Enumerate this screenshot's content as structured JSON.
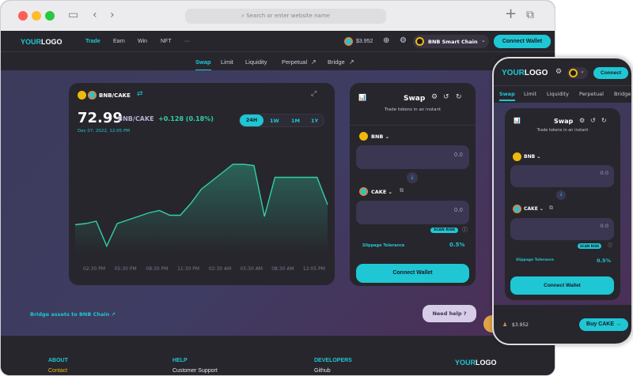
{
  "browser": {
    "search_placeholder": "Search or enter website name"
  },
  "logo": {
    "part1": "YOUR",
    "part2": "LOGO"
  },
  "nav": {
    "items": [
      "Trade",
      "Earn",
      "Win",
      "NFT",
      "···"
    ],
    "price": "$3.952",
    "network": "BNB Smart Chain",
    "connect": "Connect Wallet"
  },
  "subnav": {
    "items": [
      "Swap",
      "Limit",
      "Liquidity",
      "Perpetual",
      "Bridge"
    ]
  },
  "chart_card": {
    "pair": "BNB/CAKE",
    "price": "72.99",
    "pair_label": "BNB/CAKE",
    "change": "+0.128 (0.18%)",
    "date": "Dec 07, 2022, 12:05 PM",
    "ranges": [
      "24H",
      "1W",
      "1M",
      "1Y"
    ],
    "active_range": "24H"
  },
  "chart_data": {
    "type": "area",
    "x_ticks": [
      "02:30 PM",
      "05:30 PM",
      "08:30 PM",
      "11:30 PM",
      "02:30 AM",
      "05:30 AM",
      "08:30 AM",
      "12:05 PM"
    ],
    "values": [
      31,
      32,
      34,
      13,
      32,
      35,
      38,
      41,
      43,
      39,
      39,
      49,
      61,
      68,
      75,
      82,
      82,
      81,
      38,
      71,
      71,
      71,
      71,
      71,
      48
    ],
    "ylim": [
      0,
      100
    ],
    "grid": false,
    "color": "#31d0aa"
  },
  "swap": {
    "title": "Swap",
    "subtitle": "Trade tokens in an instant",
    "from_token": "BNB",
    "to_token": "CAKE",
    "from_value": "0.0",
    "to_value": "0.0",
    "scan_risk": "SCAN RISK",
    "slippage_label": "Slippage Tolerance",
    "slippage_value": "0.5%",
    "connect": "Connect Wallet"
  },
  "bridge_link": "Bridge assets to BNB Chain",
  "help": "Need help ?",
  "footer": {
    "cols": [
      {
        "title": "ABOUT",
        "link": "Contact"
      },
      {
        "title": "HELP",
        "link": "Customer Support"
      },
      {
        "title": "DEVELOPERS",
        "link": "Github"
      }
    ]
  },
  "mobile": {
    "connect": "Connect",
    "tabs": [
      "Swap",
      "Limit",
      "Liquidity",
      "Perpetual",
      "Bridge"
    ],
    "price": "$3.952",
    "buy": "Buy CAKE →"
  },
  "colors": {
    "accent": "#1fc7d4",
    "bg": "#27262c",
    "positive": "#31d0aa",
    "footer_link": "#f0b90b"
  }
}
